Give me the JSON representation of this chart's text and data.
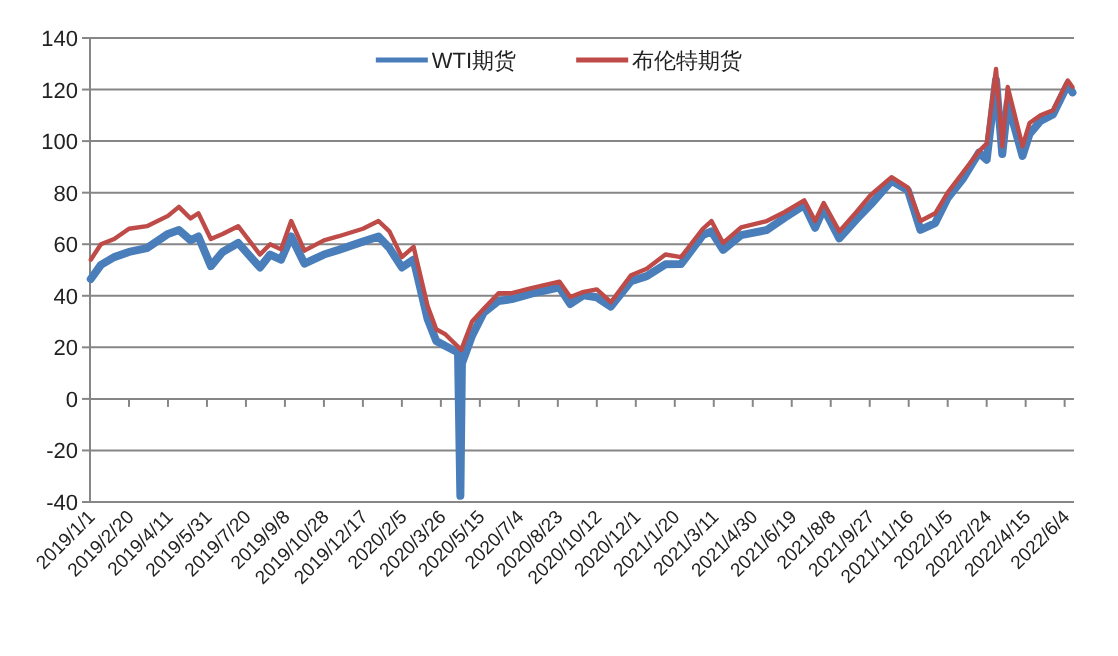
{
  "chart_data": {
    "type": "line",
    "legend": "top",
    "grid": "y",
    "marker": "none",
    "line_style": "solid",
    "ylim": [
      -40,
      140
    ],
    "yticks": [
      -40,
      -20,
      0,
      20,
      40,
      60,
      80,
      100,
      120,
      140
    ],
    "xlim": [
      "2019-01-01",
      "2022-06-16"
    ],
    "xticks": [
      {
        "value": "2019-01-01",
        "label": "2019/1/1"
      },
      {
        "value": "2019-02-20",
        "label": "2019/2/20"
      },
      {
        "value": "2019-04-11",
        "label": "2019/4/11"
      },
      {
        "value": "2019-05-31",
        "label": "2019/5/31"
      },
      {
        "value": "2019-07-20",
        "label": "2019/7/20"
      },
      {
        "value": "2019-09-08",
        "label": "2019/9/8"
      },
      {
        "value": "2019-10-28",
        "label": "2019/10/28"
      },
      {
        "value": "2019-12-17",
        "label": "2019/12/17"
      },
      {
        "value": "2020-02-05",
        "label": "2020/2/5"
      },
      {
        "value": "2020-03-26",
        "label": "2020/3/26"
      },
      {
        "value": "2020-05-15",
        "label": "2020/5/15"
      },
      {
        "value": "2020-07-04",
        "label": "2020/7/4"
      },
      {
        "value": "2020-08-23",
        "label": "2020/8/23"
      },
      {
        "value": "2020-10-12",
        "label": "2020/10/12"
      },
      {
        "value": "2020-12-01",
        "label": "2020/12/1"
      },
      {
        "value": "2021-01-20",
        "label": "2021/1/20"
      },
      {
        "value": "2021-03-11",
        "label": "2021/3/11"
      },
      {
        "value": "2021-04-30",
        "label": "2021/4/30"
      },
      {
        "value": "2021-06-19",
        "label": "2021/6/19"
      },
      {
        "value": "2021-08-08",
        "label": "2021/8/8"
      },
      {
        "value": "2021-09-27",
        "label": "2021/9/27"
      },
      {
        "value": "2021-11-16",
        "label": "2021/11/16"
      },
      {
        "value": "2022-01-05",
        "label": "2022/1/5"
      },
      {
        "value": "2022-02-24",
        "label": "2022/2/24"
      },
      {
        "value": "2022-04-15",
        "label": "2022/4/15"
      },
      {
        "value": "2022-06-04",
        "label": "2022/6/4"
      }
    ],
    "series": [
      {
        "name": "WTI期货",
        "color": "#4a7ebb",
        "x": [
          "2019-01-02",
          "2019-01-15",
          "2019-02-01",
          "2019-02-20",
          "2019-03-15",
          "2019-04-11",
          "2019-04-25",
          "2019-05-10",
          "2019-05-20",
          "2019-06-05",
          "2019-06-20",
          "2019-07-10",
          "2019-08-07",
          "2019-08-20",
          "2019-09-03",
          "2019-09-16",
          "2019-10-03",
          "2019-10-28",
          "2019-11-15",
          "2019-12-17",
          "2020-01-06",
          "2020-01-20",
          "2020-02-05",
          "2020-02-20",
          "2020-03-09",
          "2020-03-20",
          "2020-04-01",
          "2020-04-17",
          "2020-04-20",
          "2020-04-22",
          "2020-05-05",
          "2020-05-20",
          "2020-06-08",
          "2020-06-25",
          "2020-07-20",
          "2020-08-25",
          "2020-09-08",
          "2020-09-25",
          "2020-10-12",
          "2020-10-30",
          "2020-11-25",
          "2020-12-15",
          "2021-01-08",
          "2021-01-28",
          "2021-02-25",
          "2021-03-08",
          "2021-03-23",
          "2021-04-15",
          "2021-05-18",
          "2021-06-10",
          "2021-07-05",
          "2021-07-19",
          "2021-07-30",
          "2021-08-19",
          "2021-09-10",
          "2021-09-28",
          "2021-10-25",
          "2021-11-15",
          "2021-12-01",
          "2021-12-20",
          "2022-01-05",
          "2022-01-25",
          "2022-02-14",
          "2022-02-24",
          "2022-03-08",
          "2022-03-16",
          "2022-03-23",
          "2022-04-11",
          "2022-04-20",
          "2022-05-04",
          "2022-05-20",
          "2022-06-08",
          "2022-06-14"
        ],
        "values": [
          46.5,
          52,
          55,
          57,
          58.5,
          64,
          65.5,
          61.5,
          63,
          51.5,
          57,
          60.5,
          51,
          56,
          54,
          63,
          52.5,
          56,
          57.7,
          61,
          63,
          58.5,
          51,
          54,
          31,
          22.5,
          20.5,
          18,
          -37.6,
          13.8,
          24.5,
          33.5,
          38,
          38.7,
          40.8,
          43.3,
          36.8,
          40.2,
          39.4,
          35.8,
          45.7,
          47.6,
          52.2,
          52.3,
          63.5,
          65,
          57.8,
          63.5,
          65.5,
          70.3,
          75.2,
          66.4,
          73.9,
          62.3,
          69.7,
          75.3,
          84.6,
          80.9,
          65.6,
          68.2,
          77.9,
          85.6,
          95.5,
          92.8,
          123.7,
          95,
          114.9,
          94.3,
          102.8,
          107.8,
          110.3,
          122.1,
          118.9
        ]
      },
      {
        "name": "布伦特期货",
        "color": "#be4b48",
        "x": [
          "2019-01-02",
          "2019-01-15",
          "2019-02-01",
          "2019-02-20",
          "2019-03-15",
          "2019-04-11",
          "2019-04-25",
          "2019-05-10",
          "2019-05-20",
          "2019-06-05",
          "2019-06-20",
          "2019-07-10",
          "2019-08-07",
          "2019-08-20",
          "2019-09-03",
          "2019-09-16",
          "2019-10-03",
          "2019-10-28",
          "2019-11-15",
          "2019-12-17",
          "2020-01-06",
          "2020-01-20",
          "2020-02-05",
          "2020-02-20",
          "2020-03-09",
          "2020-03-20",
          "2020-04-01",
          "2020-04-21",
          "2020-05-05",
          "2020-05-20",
          "2020-06-08",
          "2020-06-25",
          "2020-07-20",
          "2020-08-25",
          "2020-09-08",
          "2020-09-25",
          "2020-10-12",
          "2020-10-30",
          "2020-11-25",
          "2020-12-15",
          "2021-01-08",
          "2021-01-28",
          "2021-02-25",
          "2021-03-08",
          "2021-03-23",
          "2021-04-15",
          "2021-05-18",
          "2021-06-10",
          "2021-07-05",
          "2021-07-19",
          "2021-07-30",
          "2021-08-19",
          "2021-09-10",
          "2021-09-28",
          "2021-10-25",
          "2021-11-15",
          "2021-12-01",
          "2021-12-20",
          "2022-01-05",
          "2022-01-25",
          "2022-02-14",
          "2022-02-24",
          "2022-03-08",
          "2022-03-16",
          "2022-03-23",
          "2022-04-11",
          "2022-04-20",
          "2022-05-04",
          "2022-05-20",
          "2022-06-08",
          "2022-06-14"
        ],
        "values": [
          54,
          60,
          62,
          66,
          67,
          71,
          74.5,
          70,
          72,
          62,
          64,
          67,
          56,
          60,
          58,
          69,
          57.5,
          61.5,
          63,
          66,
          69,
          65,
          55,
          59,
          36,
          27,
          25,
          19,
          30,
          35,
          41,
          41,
          43,
          45.5,
          39.5,
          41.5,
          42.5,
          37.5,
          48,
          50.5,
          56,
          55,
          66,
          69,
          60.5,
          66.5,
          69,
          72.5,
          77,
          69,
          76,
          65,
          72.5,
          79,
          86,
          82,
          69,
          72,
          80,
          88,
          96,
          99,
          128,
          98,
          121,
          98,
          107,
          110,
          112,
          123.5,
          121
        ]
      }
    ]
  }
}
